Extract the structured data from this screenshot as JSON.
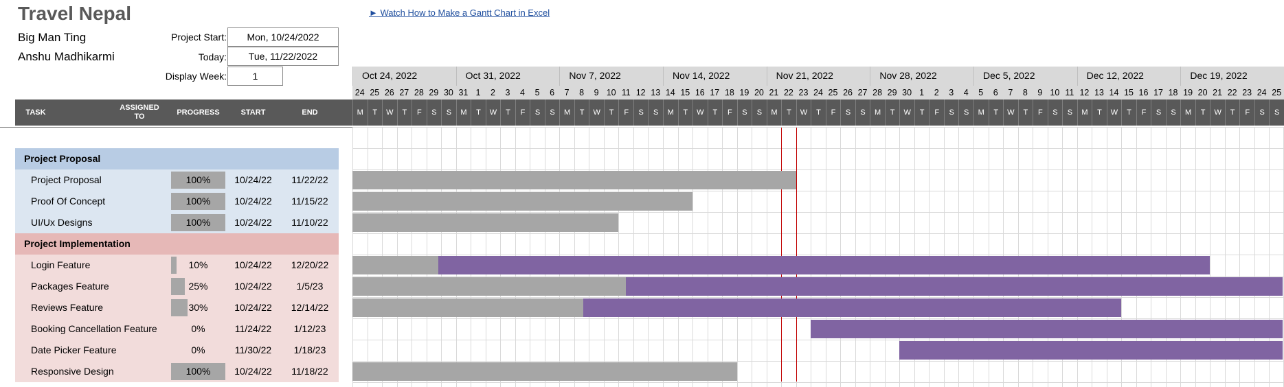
{
  "header": {
    "title": "Travel Nepal",
    "company": "Big Man Ting",
    "manager": "Anshu Madhikarmi",
    "project_start_label": "Project Start:",
    "project_start_value": "Mon, 10/24/2022",
    "today_label": "Today:",
    "today_value": "Tue, 11/22/2022",
    "display_week_label": "Display Week:",
    "display_week_value": "1",
    "link_text": "► Watch How to Make a Gantt Chart in Excel"
  },
  "columns": {
    "task": "TASK",
    "assigned": "ASSIGNED TO",
    "progress": "PROGRESS",
    "start": "START",
    "end": "END"
  },
  "timeline": {
    "weeks": [
      "Oct 24, 2022",
      "Oct 31, 2022",
      "Nov 7, 2022",
      "Nov 14, 2022",
      "Nov 21, 2022",
      "Nov 28, 2022",
      "Dec 5, 2022",
      "Dec 12, 2022",
      "Dec 19, 2022"
    ],
    "day_numbers": [
      "24",
      "25",
      "26",
      "27",
      "28",
      "29",
      "30",
      "31",
      "1",
      "2",
      "3",
      "4",
      "5",
      "6",
      "7",
      "8",
      "9",
      "10",
      "11",
      "12",
      "13",
      "14",
      "15",
      "16",
      "17",
      "18",
      "19",
      "20",
      "21",
      "22",
      "23",
      "24",
      "25",
      "26",
      "27",
      "28",
      "29",
      "30",
      "1",
      "2",
      "3",
      "4",
      "5",
      "6",
      "7",
      "8",
      "9",
      "10",
      "11",
      "12",
      "13",
      "14",
      "15",
      "16",
      "17",
      "18",
      "19",
      "20",
      "21",
      "22",
      "23",
      "24",
      "25"
    ],
    "day_letters": [
      "M",
      "T",
      "W",
      "T",
      "F",
      "S",
      "S",
      "M",
      "T",
      "W",
      "T",
      "F",
      "S",
      "S",
      "M",
      "T",
      "W",
      "T",
      "F",
      "S",
      "S",
      "M",
      "T",
      "W",
      "T",
      "F",
      "S",
      "S",
      "M",
      "T",
      "W",
      "T",
      "F",
      "S",
      "S",
      "M",
      "T",
      "W",
      "T",
      "F",
      "S",
      "S",
      "M",
      "T",
      "W",
      "T",
      "F",
      "S",
      "S",
      "M",
      "T",
      "W",
      "T",
      "F",
      "S",
      "S",
      "M",
      "T",
      "W",
      "T",
      "F",
      "S",
      "S"
    ],
    "today_day_index": 29
  },
  "rows": [
    {
      "type": "phase",
      "color": "blue",
      "name": "Project Proposal"
    },
    {
      "type": "task",
      "color": "blue",
      "name": "Project Proposal",
      "progress": "100%",
      "progress_value": 1.0,
      "start": "10/24/22",
      "end": "11/22/22",
      "start_index": 0,
      "duration_days": 30
    },
    {
      "type": "task",
      "color": "blue",
      "name": "Proof Of Concept",
      "progress": "100%",
      "progress_value": 1.0,
      "start": "10/24/22",
      "end": "11/15/22",
      "start_index": 0,
      "duration_days": 23
    },
    {
      "type": "task",
      "color": "blue",
      "name": "UI/Ux Designs",
      "progress": "100%",
      "progress_value": 1.0,
      "start": "10/24/22",
      "end": "11/10/22",
      "start_index": 0,
      "duration_days": 18
    },
    {
      "type": "phase",
      "color": "red",
      "name": "Project Implementation"
    },
    {
      "type": "task",
      "color": "red",
      "name": "Login Feature",
      "progress": "10%",
      "progress_value": 0.1,
      "start": "10/24/22",
      "end": "12/20/22",
      "start_index": 0,
      "duration_days": 58
    },
    {
      "type": "task",
      "color": "red",
      "name": "Packages Feature",
      "progress": "25%",
      "progress_value": 0.25,
      "start": "10/24/22",
      "end": "1/5/23",
      "start_index": 0,
      "duration_days": 74
    },
    {
      "type": "task",
      "color": "red",
      "name": "Reviews Feature",
      "progress": "30%",
      "progress_value": 0.3,
      "start": "10/24/22",
      "end": "12/14/22",
      "start_index": 0,
      "duration_days": 52
    },
    {
      "type": "task",
      "color": "red",
      "name": "Booking Cancellation Feature",
      "progress": "0%",
      "progress_value": 0.0,
      "start": "11/24/22",
      "end": "1/12/23",
      "start_index": 31,
      "duration_days": 50
    },
    {
      "type": "task",
      "color": "red",
      "name": "Date Picker Feature",
      "progress": "0%",
      "progress_value": 0.0,
      "start": "11/30/22",
      "end": "1/18/23",
      "start_index": 37,
      "duration_days": 50
    },
    {
      "type": "task",
      "color": "red",
      "name": "Responsive Design",
      "progress": "100%",
      "progress_value": 1.0,
      "start": "10/24/22",
      "end": "11/18/22",
      "start_index": 0,
      "duration_days": 26
    }
  ],
  "colors": {
    "done_bar": "#a6a6a6",
    "remaining_bar": "#8064a2",
    "today_line": "#c00000"
  }
}
